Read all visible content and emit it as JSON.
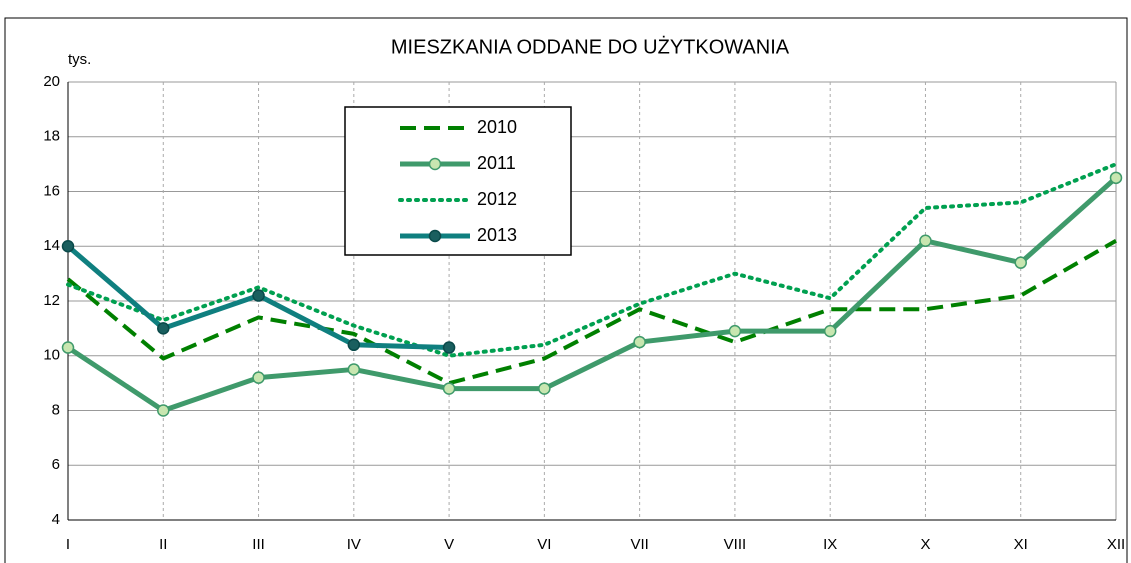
{
  "chart_data": {
    "type": "line",
    "title": "MIESZKANIA ODDANE DO UŻYTKOWANIA",
    "y_axis_label": "tys.",
    "categories": [
      "I",
      "II",
      "III",
      "IV",
      "V",
      "VI",
      "VII",
      "VIII",
      "IX",
      "X",
      "XI",
      "XII"
    ],
    "series": [
      {
        "name": "2010",
        "color": "#008000",
        "style": "dashed",
        "values": [
          12.8,
          9.9,
          11.4,
          10.8,
          9.0,
          9.9,
          11.7,
          10.5,
          11.7,
          11.7,
          12.2,
          14.2
        ]
      },
      {
        "name": "2011",
        "color": "#3f9a6b",
        "style": "solid-marker",
        "values": [
          10.3,
          8.0,
          9.2,
          9.5,
          8.8,
          8.8,
          10.5,
          10.9,
          10.9,
          14.2,
          13.4,
          16.5
        ]
      },
      {
        "name": "2012",
        "color": "#00a050",
        "style": "dotted",
        "values": [
          12.6,
          11.3,
          12.5,
          11.1,
          10.0,
          10.4,
          11.9,
          13.0,
          12.1,
          15.4,
          15.6,
          17.0
        ]
      },
      {
        "name": "2013",
        "color": "#0f7f7f",
        "style": "solid-marker",
        "values": [
          14.0,
          11.0,
          12.2,
          10.4,
          10.3,
          null,
          null,
          null,
          null,
          null,
          null,
          null
        ]
      }
    ],
    "ylim": [
      4,
      20
    ],
    "yticks": [
      4,
      6,
      8,
      10,
      12,
      14,
      16,
      18,
      20
    ],
    "grid": true
  }
}
